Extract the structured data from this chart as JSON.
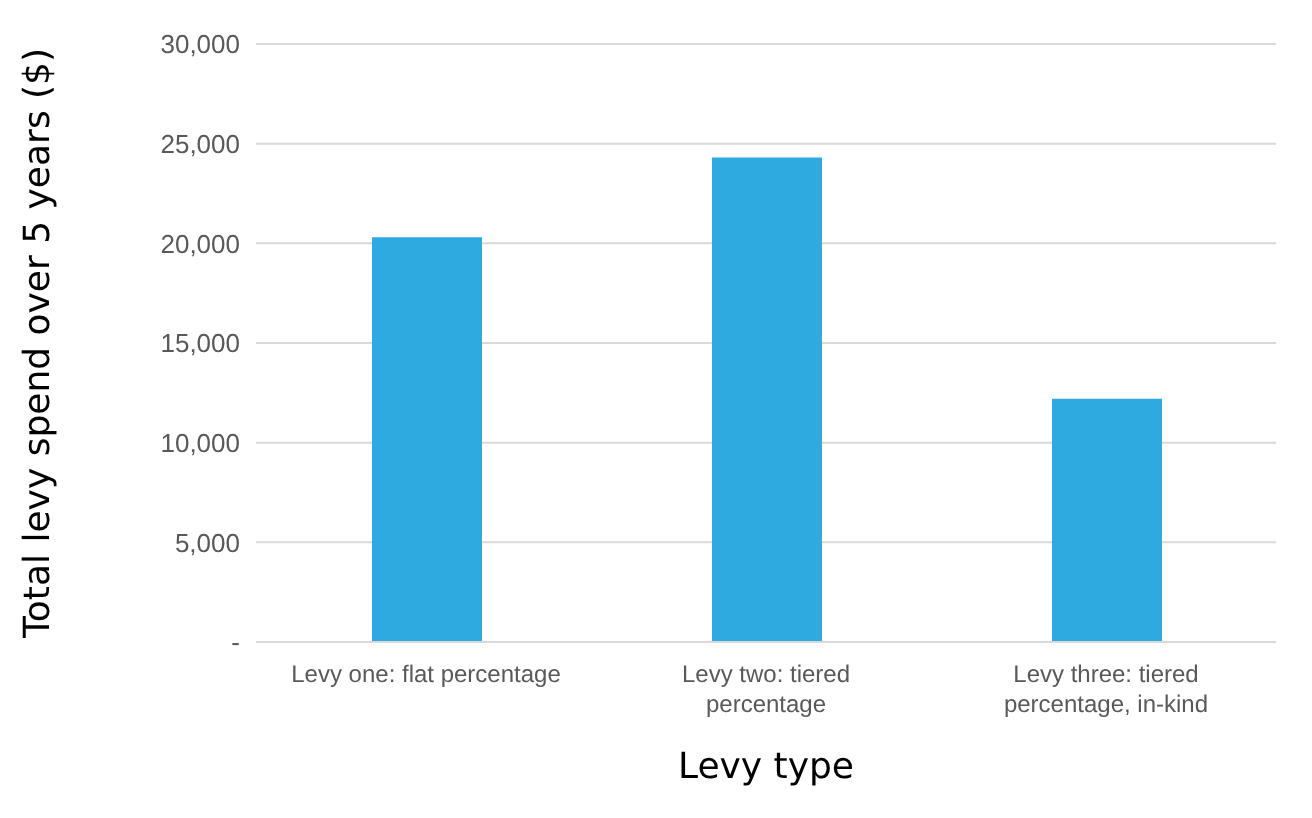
{
  "chart_data": {
    "type": "bar",
    "xlabel": "Levy type",
    "ylabel": "Total levy spend over 5 years ($)",
    "categories": [
      "Levy one: flat percentage",
      "Levy two: tiered percentage",
      "Levy three: tiered percentage, in-kind"
    ],
    "values": [
      20300,
      24300,
      12200
    ],
    "color": "#2eaae1",
    "ylim": [
      0,
      30000
    ],
    "yticks": [
      {
        "value": 0,
        "label": "-"
      },
      {
        "value": 5000,
        "label": "5,000"
      },
      {
        "value": 10000,
        "label": "10,000"
      },
      {
        "value": 15000,
        "label": "15,000"
      },
      {
        "value": 20000,
        "label": "20,000"
      },
      {
        "value": 25000,
        "label": "25,000"
      },
      {
        "value": 30000,
        "label": "30,000"
      }
    ],
    "grid": "y"
  }
}
